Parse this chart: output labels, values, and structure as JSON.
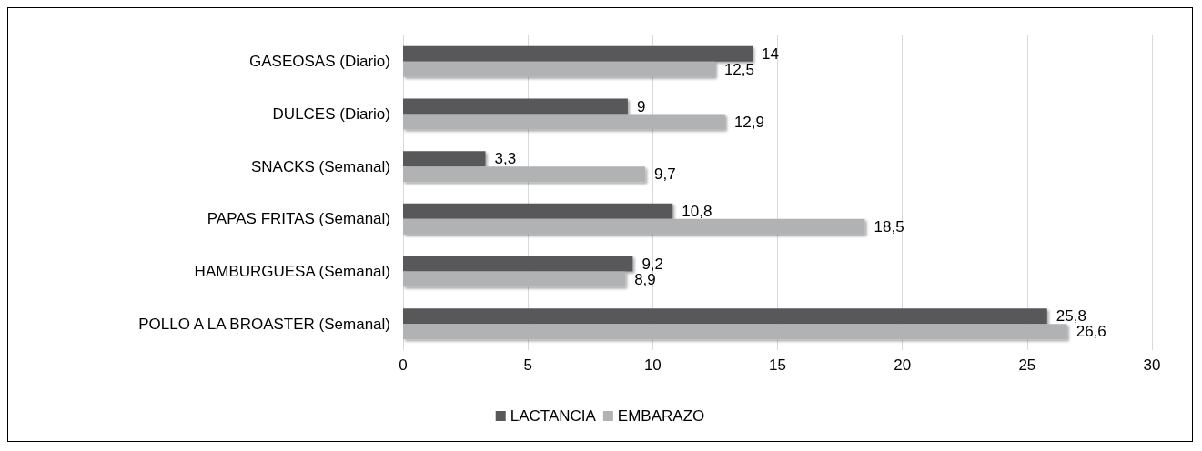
{
  "chart_data": {
    "type": "bar",
    "orientation": "horizontal",
    "categories": [
      "GASEOSAS (Diario)",
      "DULCES (Diario)",
      "SNACKS (Semanal)",
      "PAPAS FRITAS (Semanal)",
      "HAMBURGUESA (Semanal)",
      "POLLO A LA BROASTER (Semanal)"
    ],
    "series": [
      {
        "name": "LACTANCIA",
        "color": "#58585a",
        "values": [
          14,
          9,
          3.3,
          10.8,
          9.2,
          25.8
        ],
        "value_labels": [
          "14",
          "9",
          "3,3",
          "10,8",
          "9,2",
          "25,8"
        ]
      },
      {
        "name": "EMBARAZO",
        "color": "#b1b2b4",
        "values": [
          12.5,
          12.9,
          9.7,
          18.5,
          8.9,
          26.6
        ],
        "value_labels": [
          "12,5",
          "12,9",
          "9,7",
          "18,5",
          "8,9",
          "26,6"
        ]
      }
    ],
    "xlim": [
      0,
      30
    ],
    "xticks": [
      0,
      5,
      10,
      15,
      20,
      25,
      30
    ],
    "grid": "x",
    "legend": "bottom"
  }
}
